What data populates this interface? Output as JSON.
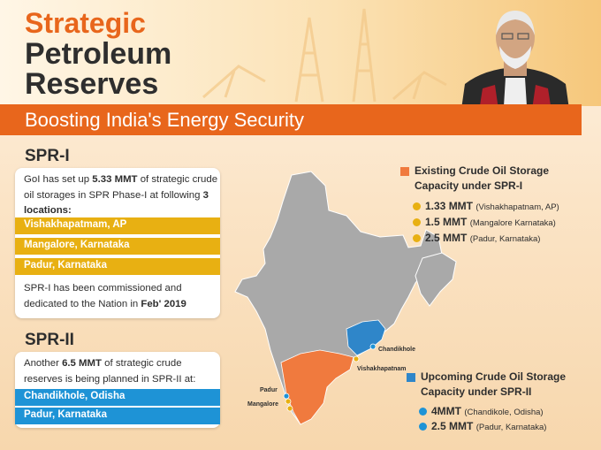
{
  "header": {
    "title_line1": "Strategic",
    "title_line2": "Petroleum",
    "title_line3": "Reserves",
    "banner": "Boosting India's Energy Security"
  },
  "spr1": {
    "heading": "SPR-I",
    "intro_a": "GoI has set up ",
    "intro_amount": "5.33 MMT",
    "intro_b": " of strategic crude oil storages in SPR Phase-I at following ",
    "intro_count": "3 locations:",
    "locations": [
      "Vishakhapatmam, AP",
      "Mangalore, Karnataka",
      "Padur, Karnataka"
    ],
    "note_a": "SPR-I has been commissioned and dedicated to the Nation in ",
    "note_date": "Feb' 2019"
  },
  "spr2": {
    "heading": "SPR-II",
    "intro_a": "Another ",
    "intro_amount": "6.5 MMT",
    "intro_b": " of strategic crude reserves is being planned in SPR-II at:",
    "locations": [
      "Chandikhole, Odisha",
      "Padur, Karnataka"
    ]
  },
  "legend_existing": {
    "heading_line1": "Existing Crude Oil Storage",
    "heading_line2": "Capacity under SPR-I",
    "items": [
      {
        "amount": "1.33 MMT",
        "place": "(Vishakhapatnam, AP)"
      },
      {
        "amount": "1.5 MMT",
        "place": "(Mangalore Karnataka)"
      },
      {
        "amount": "2.5 MMT",
        "place": "(Padur, Karnataka)"
      }
    ]
  },
  "legend_upcoming": {
    "heading_line1": "Upcoming Crude Oil Storage",
    "heading_line2": "Capacity under SPR-II",
    "items": [
      {
        "amount": "4MMT",
        "place": "(Chandikole, Odisha)"
      },
      {
        "amount": "2.5 MMT",
        "place": "(Padur, Karnataka)"
      }
    ]
  },
  "map_labels": {
    "chandikhole": "Chandikhole",
    "vishakhapatnam": "Vishakhapatnam",
    "padur": "Padur",
    "mangalore": "Mangalore"
  },
  "colors": {
    "accent_orange": "#e8661c",
    "yellow": "#e8b012",
    "blue": "#1e93d6",
    "map_grey": "#a9a9a9",
    "map_orange": "#f07a3e",
    "map_blue": "#2f86c9"
  }
}
